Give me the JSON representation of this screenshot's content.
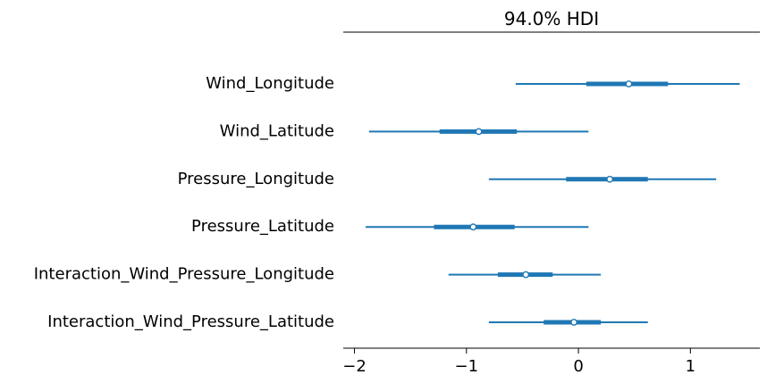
{
  "chart_data": {
    "type": "forest",
    "title": "94.0% HDI",
    "xlabel": "",
    "ylabel": "",
    "xlim": [
      -2.1,
      1.62
    ],
    "xticks": [
      -2,
      -1,
      0,
      1
    ],
    "xtick_labels": [
      "−2",
      "−1",
      "0",
      "1"
    ],
    "color": "#1f77b4",
    "variables": [
      {
        "name": "Wind_Longitude",
        "hdi_low": -0.56,
        "q_low": 0.07,
        "median": 0.45,
        "q_high": 0.8,
        "hdi_high": 1.44
      },
      {
        "name": "Wind_Latitude",
        "hdi_low": -1.87,
        "q_low": -1.24,
        "median": -0.89,
        "q_high": -0.55,
        "hdi_high": 0.09
      },
      {
        "name": "Pressure_Longitude",
        "hdi_low": -0.8,
        "q_low": -0.11,
        "median": 0.28,
        "q_high": 0.62,
        "hdi_high": 1.23
      },
      {
        "name": "Pressure_Latitude",
        "hdi_low": -1.9,
        "q_low": -1.29,
        "median": -0.94,
        "q_high": -0.57,
        "hdi_high": 0.09
      },
      {
        "name": "Interaction_Wind_Pressure_Longitude",
        "hdi_low": -1.16,
        "q_low": -0.72,
        "median": -0.47,
        "q_high": -0.23,
        "hdi_high": 0.2
      },
      {
        "name": "Interaction_Wind_Pressure_Latitude",
        "hdi_low": -0.8,
        "q_low": -0.31,
        "median": -0.04,
        "q_high": 0.2,
        "hdi_high": 0.62
      }
    ]
  }
}
